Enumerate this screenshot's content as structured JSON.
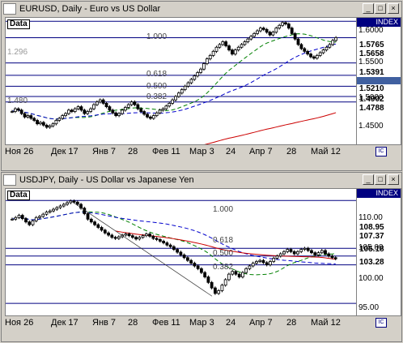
{
  "window_buttons": {
    "minimize": "_",
    "maximize": "□",
    "close": "×"
  },
  "charts": [
    {
      "title": "EURUSD, Daily - Euro vs US Dollar",
      "data_label": "Data",
      "index_label": "INDEX",
      "x_labels": [
        "Ноя 26",
        "Дек 17",
        "Янв 7",
        "28",
        "Фев 11",
        "Мар 3",
        "24",
        "Апр 7",
        "28",
        "Май 12"
      ],
      "fib_labels": [
        "1.000",
        "0.618",
        "0.500",
        "0.382"
      ],
      "ghost_labels": [
        "1.296",
        "1.480"
      ],
      "y_labels": [
        "1.6000",
        "1.5500",
        "1.5000",
        "1.4500"
      ],
      "y_tags": [
        {
          "text": "1.5765",
          "bg": "#ffffff",
          "fg": "#000000"
        },
        {
          "text": "1.5658",
          "bg": "#008000",
          "fg": "#ffffff"
        },
        {
          "text": "1.5391",
          "bg": "#000080",
          "fg": "#ffffff"
        },
        {
          "text": "1.5210",
          "bg": "#000080",
          "fg": "#ffffff"
        },
        {
          "text": "1.4902",
          "bg": "#ffffff",
          "fg": "#000000"
        },
        {
          "text": "1.4788",
          "bg": "#cc0000",
          "fg": "#ffffff"
        }
      ],
      "chart_data": {
        "type": "candlestick",
        "ylim": [
          1.42,
          1.605
        ],
        "close": [
          1.468,
          1.472,
          1.47,
          1.465,
          1.46,
          1.462,
          1.458,
          1.455,
          1.45,
          1.452,
          1.448,
          1.445,
          1.447,
          1.45,
          1.455,
          1.458,
          1.462,
          1.465,
          1.47,
          1.468,
          1.472,
          1.475,
          1.47,
          1.465,
          1.468,
          1.472,
          1.478,
          1.482,
          1.485,
          1.48,
          1.475,
          1.47,
          1.466,
          1.462,
          1.465,
          1.47,
          1.474,
          1.478,
          1.482,
          1.478,
          1.472,
          1.468,
          1.464,
          1.46,
          1.458,
          1.462,
          1.466,
          1.47,
          1.472,
          1.476,
          1.48,
          1.485,
          1.49,
          1.495,
          1.5,
          1.505,
          1.51,
          1.515,
          1.52,
          1.525,
          1.53,
          1.538,
          1.545,
          1.55,
          1.556,
          1.562,
          1.566,
          1.57,
          1.564,
          1.558,
          1.552,
          1.558,
          1.562,
          1.566,
          1.57,
          1.574,
          1.578,
          1.582,
          1.586,
          1.59,
          1.588,
          1.584,
          1.58,
          1.584,
          1.59,
          1.594,
          1.598,
          1.596,
          1.59,
          1.582,
          1.574,
          1.566,
          1.56,
          1.556,
          1.552,
          1.548,
          1.546,
          1.55,
          1.554,
          1.558,
          1.562,
          1.566,
          1.572,
          1.576
        ]
      }
    },
    {
      "title": "USDJPY, Daily - US Dollar vs Japanese Yen",
      "data_label": "Data",
      "index_label": "INDEX",
      "x_labels": [
        "Ноя 26",
        "Дек 17",
        "Янв 7",
        "28",
        "Фев 11",
        "Мар 3",
        "24",
        "Апр 7",
        "28",
        "Май 12"
      ],
      "fib_labels": [
        "1.000",
        "0.618",
        "0.500",
        "0.382"
      ],
      "y_labels": [
        "110.00",
        "105.00",
        "100.00",
        "95.00"
      ],
      "y_tags": [
        {
          "text": "108.95",
          "bg": "#cc0000",
          "fg": "#ffffff"
        },
        {
          "text": "107.37",
          "bg": "#ffffff",
          "fg": "#000000"
        },
        {
          "text": "105.18",
          "bg": "#ffffff",
          "fg": "#000000"
        },
        {
          "text": "103.28",
          "bg": "#008000",
          "fg": "#ffffff"
        }
      ],
      "chart_data": {
        "type": "candlestick",
        "ylim": [
          93,
          116
        ],
        "close": [
          110.5,
          110.8,
          111.2,
          110.6,
          110.0,
          109.5,
          110.2,
          110.8,
          111.0,
          111.4,
          111.8,
          112.0,
          112.3,
          112.6,
          112.9,
          113.2,
          113.5,
          113.8,
          113.6,
          113.2,
          112.5,
          111.5,
          110.5,
          110.0,
          109.5,
          109.0,
          108.5,
          108.0,
          107.6,
          107.2,
          107.0,
          107.3,
          107.6,
          107.8,
          107.5,
          107.2,
          106.9,
          107.2,
          107.5,
          107.8,
          107.4,
          107.0,
          106.8,
          106.5,
          106.2,
          105.8,
          105.5,
          105.0,
          104.5,
          104.0,
          103.5,
          103.0,
          102.5,
          102.0,
          101.5,
          100.8,
          100.0,
          99.0,
          98.0,
          97.0,
          97.5,
          98.5,
          99.5,
          100.5,
          101.0,
          100.5,
          100.0,
          100.8,
          101.5,
          102.0,
          102.5,
          102.8,
          103.0,
          102.6,
          102.2,
          102.8,
          103.4,
          103.8,
          104.2,
          104.6,
          105.0,
          104.6,
          104.2,
          104.6,
          105.0,
          105.2,
          104.8,
          104.4,
          104.0,
          104.4,
          104.8,
          104.2,
          103.8,
          103.5,
          103.3
        ]
      }
    }
  ]
}
